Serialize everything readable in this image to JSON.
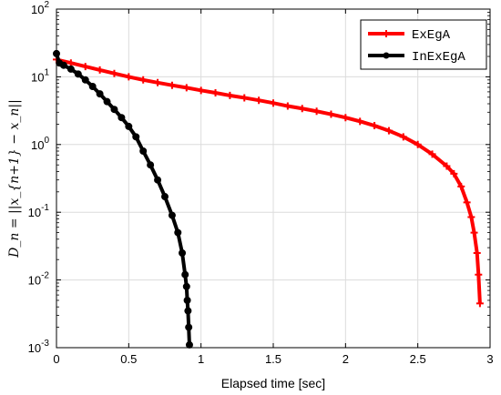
{
  "chart_data": {
    "type": "line",
    "xlabel": "Elapsed time [sec]",
    "ylabel": "D_n = ||x_{n+1} − x_n||",
    "xlim": [
      0,
      3
    ],
    "ylim": [
      0.001,
      100
    ],
    "yscale": "log",
    "grid": true,
    "legend_position": "top-right",
    "x_ticks": [
      "0",
      "0.5",
      "1",
      "1.5",
      "2",
      "2.5",
      "3"
    ],
    "y_ticks": [
      {
        "base": "10",
        "exp": "-3"
      },
      {
        "base": "10",
        "exp": "-2"
      },
      {
        "base": "10",
        "exp": "-1"
      },
      {
        "base": "10",
        "exp": "0"
      },
      {
        "base": "10",
        "exp": "1"
      },
      {
        "base": "10",
        "exp": "2"
      }
    ],
    "series": [
      {
        "name": "ExEgA",
        "color": "#ff0000",
        "marker": "plus",
        "x": [
          0.0,
          0.1,
          0.2,
          0.3,
          0.4,
          0.5,
          0.6,
          0.7,
          0.8,
          0.9,
          1.0,
          1.1,
          1.2,
          1.3,
          1.4,
          1.5,
          1.6,
          1.7,
          1.8,
          1.9,
          2.0,
          2.1,
          2.2,
          2.3,
          2.4,
          2.5,
          2.6,
          2.7,
          2.75,
          2.8,
          2.84,
          2.87,
          2.89,
          2.91,
          2.92,
          2.93
        ],
        "y": [
          18.0,
          16.0,
          14.2,
          12.6,
          11.2,
          10.0,
          9.0,
          8.2,
          7.5,
          6.9,
          6.3,
          5.8,
          5.3,
          4.9,
          4.5,
          4.1,
          3.7,
          3.4,
          3.1,
          2.8,
          2.5,
          2.2,
          1.9,
          1.6,
          1.3,
          1.0,
          0.72,
          0.48,
          0.37,
          0.24,
          0.14,
          0.085,
          0.05,
          0.025,
          0.012,
          0.0045
        ]
      },
      {
        "name": "InExEgA",
        "color": "#000000",
        "marker": "circle",
        "x": [
          0.0,
          0.02,
          0.05,
          0.1,
          0.15,
          0.2,
          0.25,
          0.3,
          0.35,
          0.4,
          0.45,
          0.5,
          0.55,
          0.6,
          0.65,
          0.7,
          0.75,
          0.8,
          0.84,
          0.87,
          0.89,
          0.9,
          0.905,
          0.91,
          0.915,
          0.92
        ],
        "y": [
          22.0,
          16.0,
          14.8,
          13.0,
          11.0,
          9.0,
          7.2,
          5.6,
          4.3,
          3.3,
          2.5,
          1.85,
          1.3,
          0.8,
          0.5,
          0.3,
          0.17,
          0.09,
          0.05,
          0.025,
          0.012,
          0.008,
          0.005,
          0.0035,
          0.002,
          0.0011
        ]
      }
    ]
  }
}
